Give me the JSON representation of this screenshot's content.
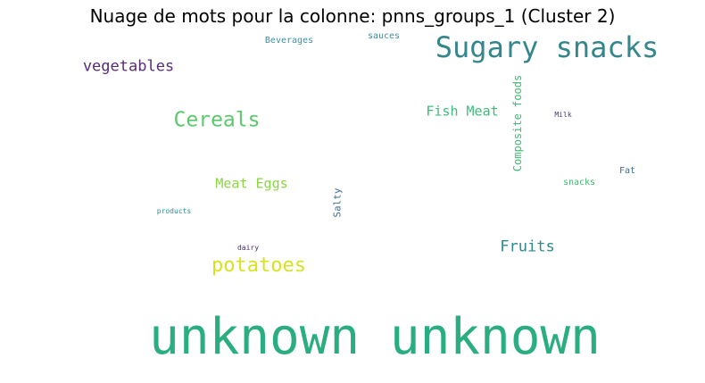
{
  "title": "Nuage de mots pour la colonne: pnns_groups_1 (Cluster 2)",
  "words": [
    {
      "text": "Sugary snacks",
      "color": "#33868c"
    },
    {
      "text": "Beverages",
      "color": "#3d8fa5"
    },
    {
      "text": "sauces",
      "color": "#3a8fa0"
    },
    {
      "text": "vegetables",
      "color": "#5a2b78"
    },
    {
      "text": "Cereals",
      "color": "#5cc86c"
    },
    {
      "text": "Fish Meat",
      "color": "#3dbb78"
    },
    {
      "text": "Composite foods",
      "color": "#3cbb74"
    },
    {
      "text": "Milk",
      "color": "#4a3a7a"
    },
    {
      "text": "Fat",
      "color": "#3f6c96"
    },
    {
      "text": "snacks",
      "color": "#3dbb72"
    },
    {
      "text": "Meat Eggs",
      "color": "#8bd546"
    },
    {
      "text": "Salty",
      "color": "#3f6c92"
    },
    {
      "text": "products",
      "color": "#2a8c8e"
    },
    {
      "text": "dairy",
      "color": "#4a2a72"
    },
    {
      "text": "Fruits",
      "color": "#2c8a8e"
    },
    {
      "text": "potatoes",
      "color": "#d8e220"
    },
    {
      "text": "unknown unknown",
      "color": "#2aae80"
    }
  ]
}
